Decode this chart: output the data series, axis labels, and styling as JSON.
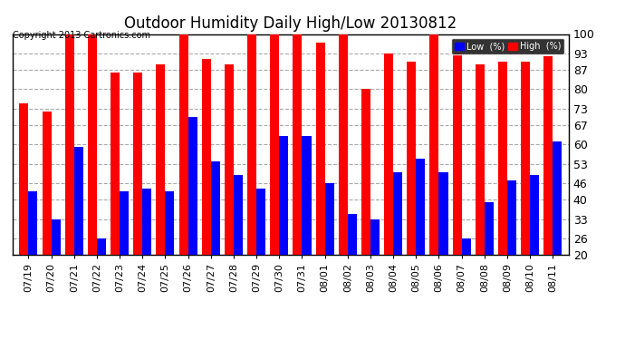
{
  "title": "Outdoor Humidity Daily High/Low 20130812",
  "copyright": "Copyright 2013 Cartronics.com",
  "categories": [
    "07/19",
    "07/20",
    "07/21",
    "07/22",
    "07/23",
    "07/24",
    "07/25",
    "07/26",
    "07/27",
    "07/28",
    "07/29",
    "07/30",
    "07/31",
    "08/01",
    "08/02",
    "08/03",
    "08/04",
    "08/05",
    "08/06",
    "08/07",
    "08/08",
    "08/09",
    "08/10",
    "08/11"
  ],
  "high": [
    75,
    72,
    100,
    100,
    86,
    86,
    89,
    100,
    91,
    89,
    100,
    100,
    100,
    97,
    100,
    80,
    93,
    90,
    100,
    93,
    89,
    90,
    90,
    92
  ],
  "low": [
    43,
    33,
    59,
    26,
    43,
    44,
    43,
    70,
    54,
    49,
    44,
    63,
    63,
    46,
    35,
    33,
    50,
    55,
    50,
    26,
    39,
    47,
    49,
    61
  ],
  "high_color": "#ff0000",
  "low_color": "#0000ff",
  "bg_color": "#ffffff",
  "grid_color": "#aaaaaa",
  "yticks": [
    20,
    26,
    33,
    40,
    46,
    53,
    60,
    67,
    73,
    80,
    87,
    93,
    100
  ],
  "ymin": 20,
  "ymax": 100,
  "bar_width": 0.4,
  "title_fontsize": 12,
  "tick_fontsize": 9,
  "legend_low_label": "Low  (%)",
  "legend_high_label": "High  (%)"
}
